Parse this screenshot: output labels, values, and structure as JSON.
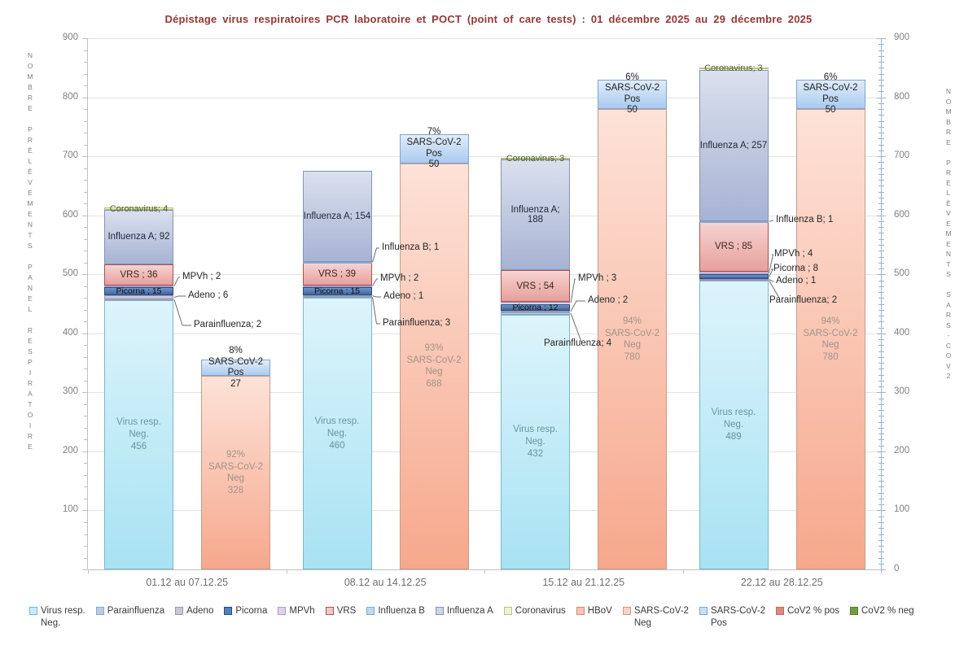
{
  "chart_data": {
    "type": "bar",
    "stacked": true,
    "title": "Dépistage virus respiratoires PCR laboratoire et POCT (point of care tests) : 01 décembre 2025 au  29 décembre 2025",
    "categories": [
      "01.12 au 07.12.25",
      "08.12 au 14.12.25",
      "15.12 au 21.12.25",
      "22.12 au 28.12.25"
    ],
    "ylim": [
      0,
      900
    ],
    "y_major_step": 100,
    "grid": true,
    "legend_position": "bottom",
    "left_axis_label": "NOMBRE PRÉLÈVEMENTS PANEL RESPIRATOIRE",
    "right_axis_label": "NOMBRE PRÉLÈVEMENTS SARS-COV2",
    "respiratory_series": [
      {
        "key": "virus_neg",
        "name": "Virus resp. Neg.",
        "bar_label_lines": [
          "Virus resp.",
          "Neg."
        ],
        "values": [
          456,
          460,
          432,
          489
        ]
      },
      {
        "key": "parainfluenza",
        "name": "Parainfluenza",
        "sep": "; ",
        "values": [
          2,
          3,
          4,
          2
        ]
      },
      {
        "key": "adeno",
        "name": "Adeno",
        "sep": " ; ",
        "values": [
          6,
          1,
          2,
          1
        ]
      },
      {
        "key": "picorna",
        "name": "Picorna",
        "sep": " ; ",
        "values": [
          15,
          15,
          12,
          8
        ]
      },
      {
        "key": "mpvh",
        "name": "MPVh",
        "sep": " ; ",
        "values": [
          2,
          2,
          3,
          4
        ]
      },
      {
        "key": "vrs",
        "name": "VRS",
        "sep": " ; ",
        "values": [
          36,
          39,
          54,
          85
        ]
      },
      {
        "key": "influenza_b",
        "name": "Influenza B",
        "sep": "; ",
        "values": [
          0,
          1,
          0,
          1
        ]
      },
      {
        "key": "influenza_a",
        "name": "Influenza A",
        "sep": "; ",
        "values": [
          92,
          154,
          188,
          257
        ]
      },
      {
        "key": "coronavirus",
        "name": "Coronavirus",
        "sep": "; ",
        "values": [
          4,
          0,
          3,
          3
        ]
      },
      {
        "key": "hbov",
        "name": "HBoV",
        "sep": "; ",
        "values": [
          0,
          0,
          0,
          0
        ]
      }
    ],
    "sars_series": [
      {
        "key": "sars_neg",
        "name": "SARS-CoV-2 Neg",
        "bar_label_lines": [
          "SARS-CoV-2",
          "Neg"
        ],
        "values": [
          328,
          688,
          780,
          780
        ],
        "pct": [
          "92%",
          "93%",
          "94%",
          "94%"
        ]
      },
      {
        "key": "sars_pos",
        "name": "SARS-CoV-2 Pos",
        "bar_label_lines": [
          "SARS-CoV-2",
          "Pos"
        ],
        "values": [
          27,
          50,
          50,
          50
        ],
        "pct": [
          "8%",
          "7%",
          "6%",
          "6%"
        ]
      }
    ],
    "colors": {
      "virus_neg": {
        "swatch": "#c9ecf7",
        "top": "#ddf4fb",
        "bottom": "#a8e2f3",
        "border": "#7ab7cb",
        "text": "#6b93a3"
      },
      "parainfluenza": {
        "swatch": "#b9cde4",
        "top": "#c3d5e8",
        "bottom": "#a9c1dc",
        "border": "#89a7c6"
      },
      "adeno": {
        "swatch": "#c9c6d9",
        "top": "#d2cfe0",
        "bottom": "#bdb9cf",
        "border": "#9c98b3"
      },
      "picorna": {
        "swatch": "#4f81bd",
        "top": "#6f96c9",
        "bottom": "#3e67a0",
        "border": "#2a4a7c",
        "text": "#111111"
      },
      "mpvh": {
        "swatch": "#ddd2e8",
        "top": "#e4dcee",
        "bottom": "#d2c4e2",
        "border": "#af9cc8"
      },
      "vrs": {
        "swatch": "#f1c7c5",
        "top": "#f6d3d1",
        "bottom": "#e6a09c",
        "border": "#a6524e",
        "text": "#3d2523"
      },
      "influenza_b": {
        "swatch": "#c2d8f2",
        "top": "#cbdef4",
        "bottom": "#b4cfee",
        "border": "#84a7d4"
      },
      "influenza_a": {
        "swatch": "#ccd4e6",
        "top": "#dbe0ee",
        "bottom": "#a7b3d3",
        "border": "#8593b4",
        "text": "#23283a"
      },
      "coronavirus": {
        "swatch": "#edf2d5",
        "top": "#eff3d8",
        "bottom": "#e7edc6",
        "border": "#b9c279",
        "text": "#4f6228"
      },
      "hbov": {
        "swatch": "#f9c3b2",
        "top": "#fad0c2",
        "bottom": "#f5ab93",
        "border": "#cc8a74"
      },
      "sars_neg": {
        "swatch": "#fbd3c3",
        "top": "#fde2d8",
        "bottom": "#f6a88c",
        "border": "#c79c8a",
        "text": "#a3928a"
      },
      "sars_pos": {
        "swatch": "#c9def6",
        "top": "#e0ecfa",
        "bottom": "#abcbf0",
        "border": "#7fa5d2",
        "text": "#1f1f1f"
      },
      "cov2_pct_pos": {
        "swatch": "#dd8a7f",
        "border": "#b96a60"
      },
      "cov2_pct_neg": {
        "swatch": "#6f9e3f",
        "border": "#54802c"
      },
      "title_text": "#943735",
      "axis_text": "#7f7f7f",
      "category_text": "#6e6e6e",
      "right_axis_line": "#95b3d7",
      "left_axis_line": "#bfbfbf",
      "gridline": "#e2e2e2",
      "leader_line": "#6e6e6e"
    },
    "legend": [
      {
        "key": "virus_neg",
        "lines": [
          "Virus resp.",
          "Neg."
        ]
      },
      {
        "key": "parainfluenza",
        "lines": [
          "Parainfluenza"
        ]
      },
      {
        "key": "adeno",
        "lines": [
          "Adeno"
        ]
      },
      {
        "key": "picorna",
        "lines": [
          "Picorna"
        ]
      },
      {
        "key": "mpvh",
        "lines": [
          "MPVh"
        ]
      },
      {
        "key": "vrs",
        "lines": [
          "VRS"
        ]
      },
      {
        "key": "influenza_b",
        "lines": [
          "Influenza B"
        ]
      },
      {
        "key": "influenza_a",
        "lines": [
          "Influenza A"
        ]
      },
      {
        "key": "coronavirus",
        "lines": [
          "Coronavirus"
        ]
      },
      {
        "key": "hbov",
        "lines": [
          "HBoV"
        ]
      },
      {
        "key": "sars_neg",
        "lines": [
          "SARS-CoV-2",
          "Neg"
        ]
      },
      {
        "key": "sars_pos",
        "lines": [
          "SARS-CoV-2",
          "Pos"
        ]
      },
      {
        "key": "cov2_pct_pos",
        "lines": [
          "CoV2 % pos"
        ]
      },
      {
        "key": "cov2_pct_neg",
        "lines": [
          "CoV2 % neg"
        ]
      }
    ]
  }
}
